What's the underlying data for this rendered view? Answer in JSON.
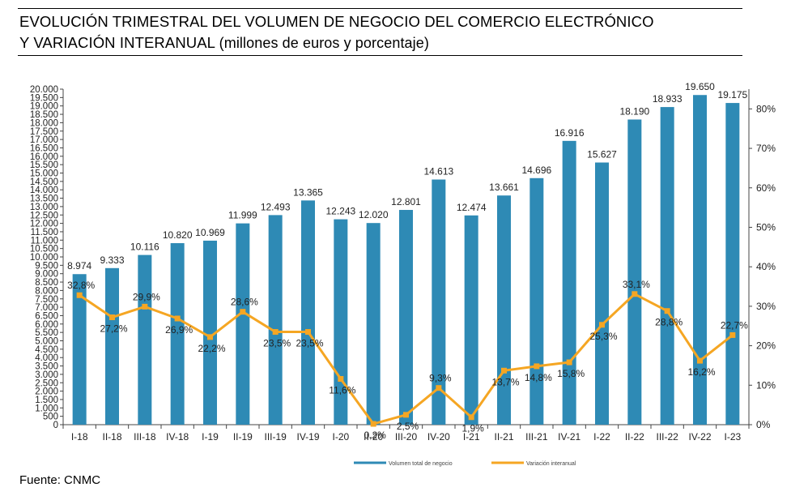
{
  "header": {
    "title_line1": "EVOLUCIÓN TRIMESTRAL DEL VOLUMEN DE NEGOCIO DEL COMERCIO ELECTRÓNICO",
    "title_line2_main": "Y VARIACIÓN INTERANUAL",
    "title_line2_sub": "(millones de euros y porcentaje)"
  },
  "footer": {
    "source": "Fuente: CNMC"
  },
  "chart_data": {
    "type": "bar",
    "combined_with": "line",
    "categories": [
      "I-18",
      "II-18",
      "III-18",
      "IV-18",
      "I-19",
      "II-19",
      "III-19",
      "IV-19",
      "I-20",
      "II-20",
      "III-20",
      "IV-20",
      "I-21",
      "II-21",
      "III-21",
      "IV-21",
      "I-22",
      "II-22",
      "III-22",
      "IV-22",
      "I-23"
    ],
    "series": [
      {
        "name": "Volumen total de negocio",
        "kind": "bar",
        "axis": "left",
        "color": "#2e8ab5",
        "values": [
          8974,
          9333,
          10116,
          10820,
          10969,
          11999,
          12493,
          13365,
          12243,
          12020,
          12801,
          14613,
          12474,
          13661,
          14696,
          16916,
          15627,
          18190,
          18933,
          19650,
          19175
        ],
        "labels": [
          "8.974",
          "9.333",
          "10.116",
          "10.820",
          "10.969",
          "11.999",
          "12.493",
          "13.365",
          "12.243",
          "12.020",
          "12.801",
          "14.613",
          "12.474",
          "13.661",
          "14.696",
          "16.916",
          "15.627",
          "18.190",
          "18.933",
          "19.650",
          "19.175"
        ]
      },
      {
        "name": "Variación interanual",
        "kind": "line",
        "axis": "right",
        "color": "#f5a623",
        "values": [
          32.8,
          27.2,
          29.9,
          26.9,
          22.2,
          28.6,
          23.5,
          23.5,
          11.6,
          0.2,
          2.5,
          9.3,
          1.9,
          13.7,
          14.8,
          15.8,
          25.3,
          33.1,
          28.8,
          16.2,
          22.7
        ],
        "labels": [
          "32,8%",
          "27,2%",
          "29,9%",
          "26,9%",
          "22,2%",
          "28,6%",
          "23,5%",
          "23,5%",
          "11,6%",
          "0,2%",
          "2,5%",
          "9,3%",
          "1,9%",
          "13,7%",
          "14,8%",
          "15,8%",
          "25,3%",
          "33,1%",
          "28,8%",
          "16,2%",
          "22,7%"
        ]
      }
    ],
    "y_left": {
      "range": [
        0,
        20000
      ],
      "ticks": [
        0,
        500,
        1000,
        1500,
        2000,
        2500,
        3000,
        3500,
        4000,
        4500,
        5000,
        5500,
        6000,
        6500,
        7000,
        7500,
        8000,
        8500,
        9000,
        9500,
        10000,
        10500,
        11000,
        11500,
        12000,
        12500,
        13000,
        13500,
        14000,
        14500,
        15000,
        15500,
        16000,
        16500,
        17000,
        17500,
        18000,
        18500,
        19000,
        19500,
        20000
      ],
      "tick_labels": [
        "0",
        "500",
        "1.000",
        "1.500",
        "2.000",
        "2.500",
        "3.000",
        "3.500",
        "4.000",
        "4.500",
        "5.000",
        "5.500",
        "6.000",
        "6.500",
        "7.000",
        "7.500",
        "8.000",
        "8.500",
        "9.000",
        "9.500",
        "10.000",
        "10.500",
        "11.000",
        "11.500",
        "12.000",
        "12.500",
        "13.000",
        "13.500",
        "14.000",
        "14.500",
        "15.000",
        "15.500",
        "16.000",
        "16.500",
        "17.000",
        "17.500",
        "18.000",
        "18.500",
        "19.000",
        "19.500",
        "20.000"
      ]
    },
    "y_right": {
      "range": [
        0,
        85
      ],
      "ticks": [
        0,
        10,
        20,
        30,
        40,
        50,
        60,
        70,
        80
      ],
      "tick_labels": [
        "0%",
        "10%",
        "20%",
        "30%",
        "40%",
        "50%",
        "60%",
        "70%",
        "80%"
      ]
    },
    "grid": false,
    "legend": {
      "position": "bottom",
      "entries": [
        "Volumen total de negocio",
        "Variación interanual"
      ]
    }
  }
}
